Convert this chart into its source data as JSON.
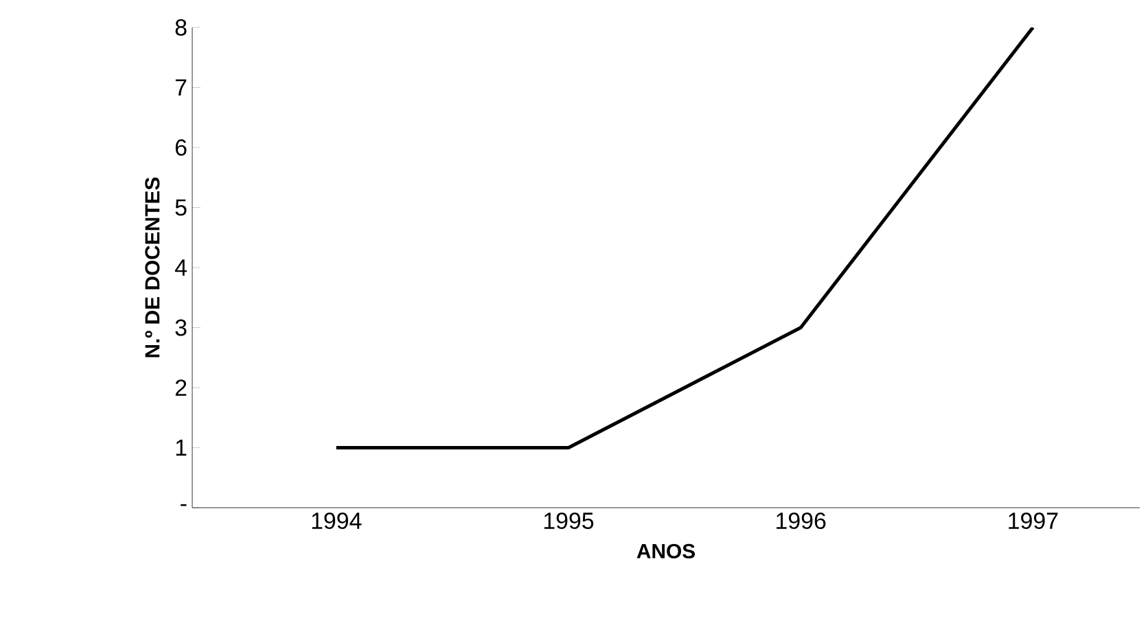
{
  "chart_data": {
    "type": "line",
    "xlabel": "ANOS",
    "ylabel": "N.º DE DOCENTES",
    "categories": [
      "1994",
      "1995",
      "1996",
      "1997"
    ],
    "series": [
      {
        "color": "#000000",
        "values": [
          1,
          1,
          3,
          8
        ]
      }
    ],
    "ylim": [
      0,
      8
    ],
    "yticks": [
      {
        "value": 0,
        "label": "-"
      },
      1,
      2,
      3,
      4,
      5,
      6,
      7,
      8
    ],
    "grid": false,
    "marker": "none",
    "line_style": "solid"
  }
}
